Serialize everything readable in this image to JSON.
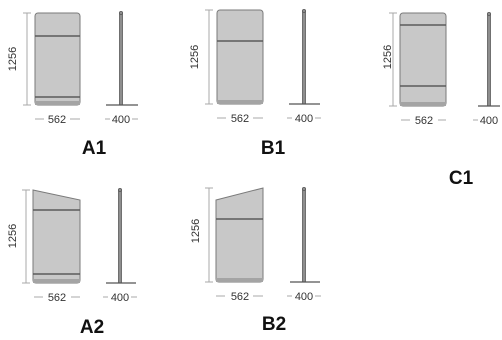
{
  "colors": {
    "panel_fill": "#c8c8c8",
    "panel_edge": "#7a7a7a",
    "band_line": "#5a5a5a",
    "post_fill": "#8e8e8e",
    "dimension_line": "#a8a8a8",
    "label_text": "#111111"
  },
  "variants": [
    {
      "id": "a1",
      "label": "A1",
      "top": "flat",
      "height_label": "1256",
      "width_label": "562",
      "depth_label": "400"
    },
    {
      "id": "b1",
      "label": "B1",
      "top": "flat",
      "height_label": "1256",
      "width_label": "562",
      "depth_label": "400"
    },
    {
      "id": "c1",
      "label": "C1",
      "top": "flat",
      "height_label": "1256",
      "width_label": "562",
      "depth_label": "400"
    },
    {
      "id": "a2",
      "label": "A2",
      "top": "sloped",
      "height_label": "1256",
      "width_label": "562",
      "depth_label": "400"
    },
    {
      "id": "b2",
      "label": "B2",
      "top": "sloped",
      "height_label": "1256",
      "width_label": "562",
      "depth_label": "400"
    }
  ]
}
